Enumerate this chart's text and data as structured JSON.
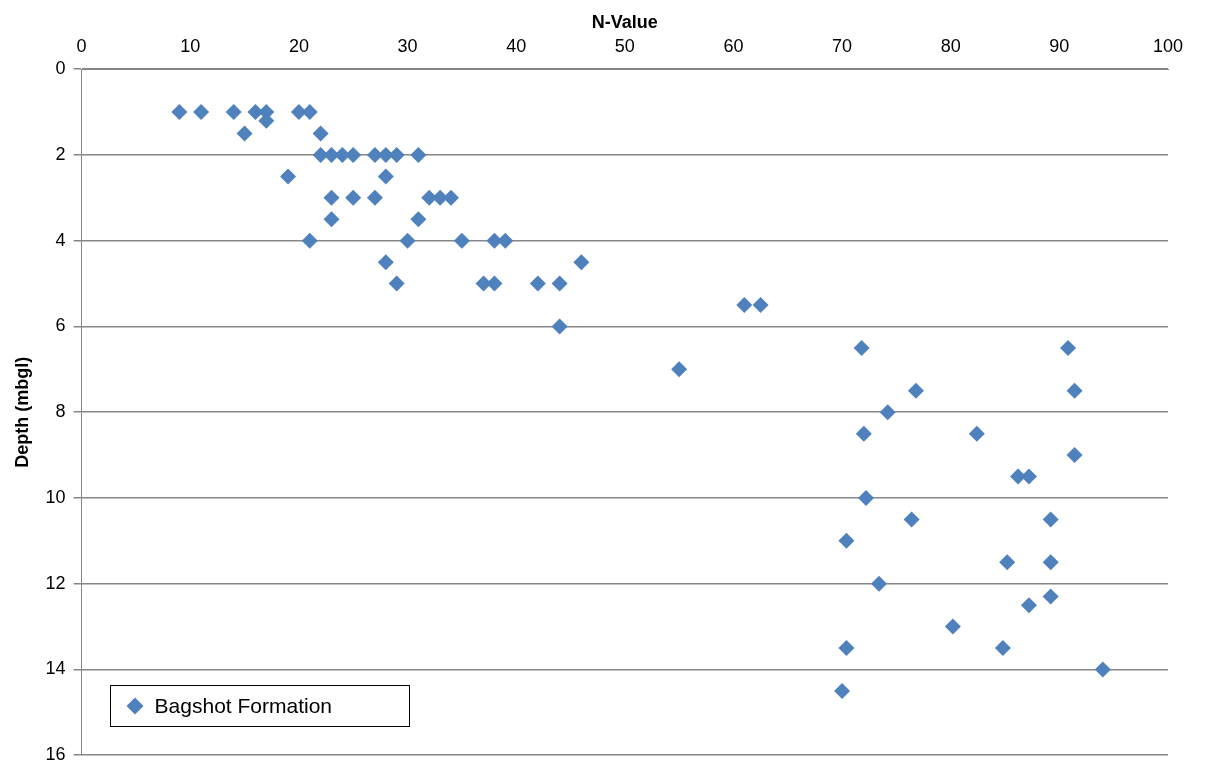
{
  "chart_data": {
    "type": "scatter",
    "xlabel": "N-Value",
    "ylabel": "Depth (mbgl)",
    "xlim": [
      0,
      100
    ],
    "xticks": [
      0,
      10,
      20,
      30,
      40,
      50,
      60,
      70,
      80,
      90,
      100
    ],
    "ylim": [
      16,
      0
    ],
    "yticks": [
      0,
      2,
      4,
      6,
      8,
      10,
      12,
      14,
      16
    ],
    "grid": "y",
    "legend": "bottom left",
    "marker": "diamond",
    "series": [
      {
        "name": "Bagshot Formation",
        "color": "#4f81bd",
        "x": [
          9,
          11,
          14,
          16,
          17,
          20,
          21,
          17,
          15,
          22,
          22,
          23,
          24,
          25,
          27,
          28,
          29,
          31,
          19,
          28,
          23,
          25,
          27,
          32,
          33,
          34,
          23,
          31,
          21,
          30,
          35,
          38,
          39,
          28,
          46,
          29,
          37,
          38,
          42,
          44,
          44,
          61,
          62.5,
          55,
          71.8,
          90.8,
          76.8,
          91.4,
          74.2,
          72,
          82.4,
          91.4,
          86.2,
          87.2,
          72.2,
          76.4,
          89.2,
          70.4,
          85.2,
          89.2,
          73.4,
          89.2,
          87.2,
          80.2,
          70.4,
          84.8,
          94,
          70
        ],
        "values": [
          1,
          1,
          1,
          1,
          1,
          1,
          1,
          1.2,
          1.5,
          1.5,
          2,
          2,
          2,
          2,
          2,
          2,
          2,
          2,
          2.5,
          2.5,
          3,
          3,
          3,
          3,
          3,
          3,
          3.5,
          3.5,
          4,
          4,
          4,
          4,
          4,
          4.5,
          4.5,
          5,
          5,
          5,
          5,
          5,
          6,
          5.5,
          5.5,
          7,
          6.5,
          6.5,
          7.5,
          7.5,
          8,
          8.5,
          8.5,
          9,
          9.5,
          9.5,
          10,
          10.5,
          10.5,
          11,
          11.5,
          11.5,
          12,
          12.3,
          12.5,
          13,
          13.5,
          13.5,
          14,
          14.5
        ]
      }
    ]
  }
}
